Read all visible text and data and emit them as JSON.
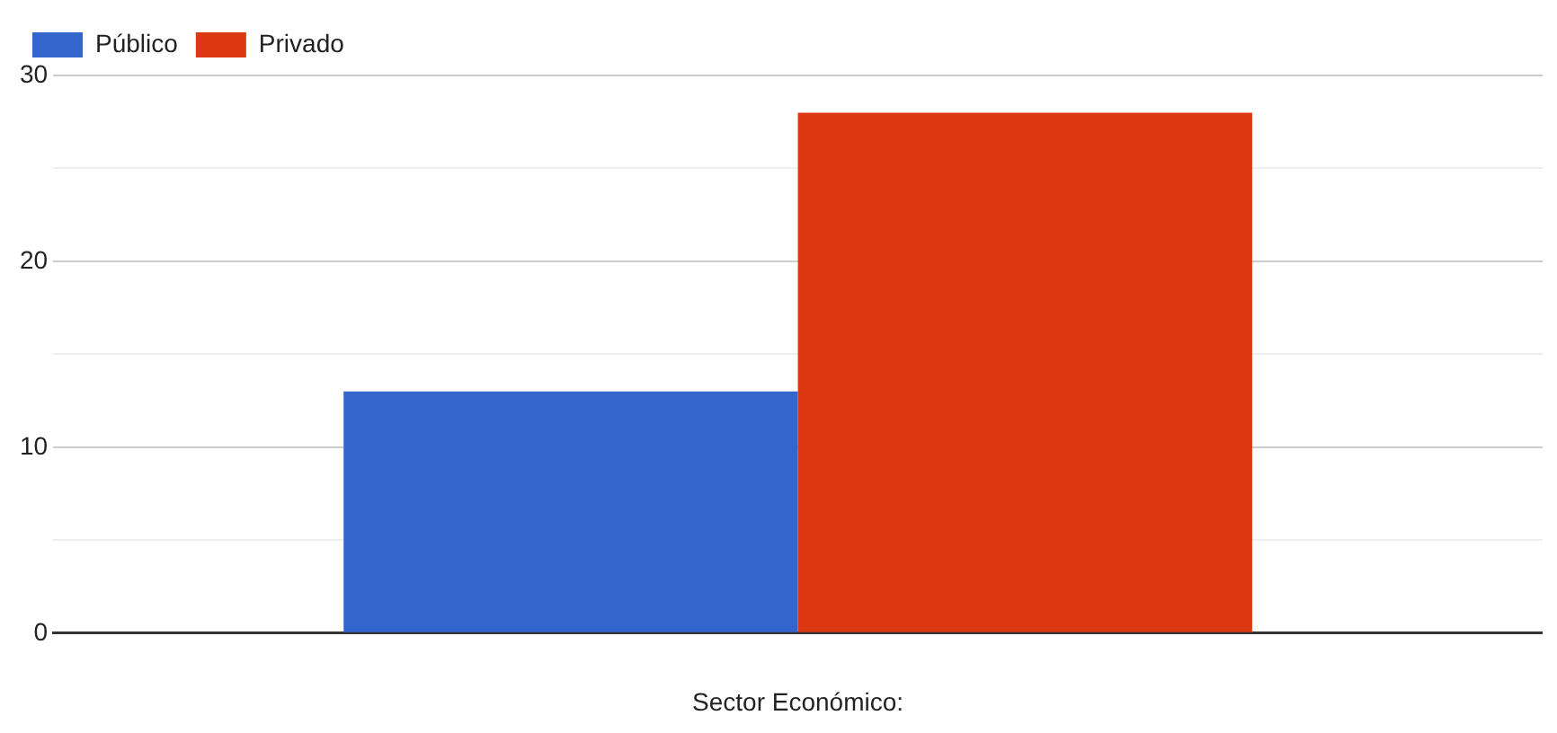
{
  "chart_data": {
    "type": "bar",
    "xlabel": "Sector Económico:",
    "categories": [
      null
    ],
    "series": [
      {
        "name": "Público",
        "color": "#3366cc",
        "values": [
          13
        ]
      },
      {
        "name": "Privado",
        "color": "#dc3912",
        "values": [
          28
        ]
      }
    ],
    "ylim": [
      0,
      30
    ],
    "yticks": [
      0,
      {
        "value": 5,
        "label": null
      },
      10,
      {
        "value": 15,
        "label": null
      },
      20,
      {
        "value": 25,
        "label": null
      },
      30
    ],
    "grid": "y",
    "legend": "top left"
  }
}
